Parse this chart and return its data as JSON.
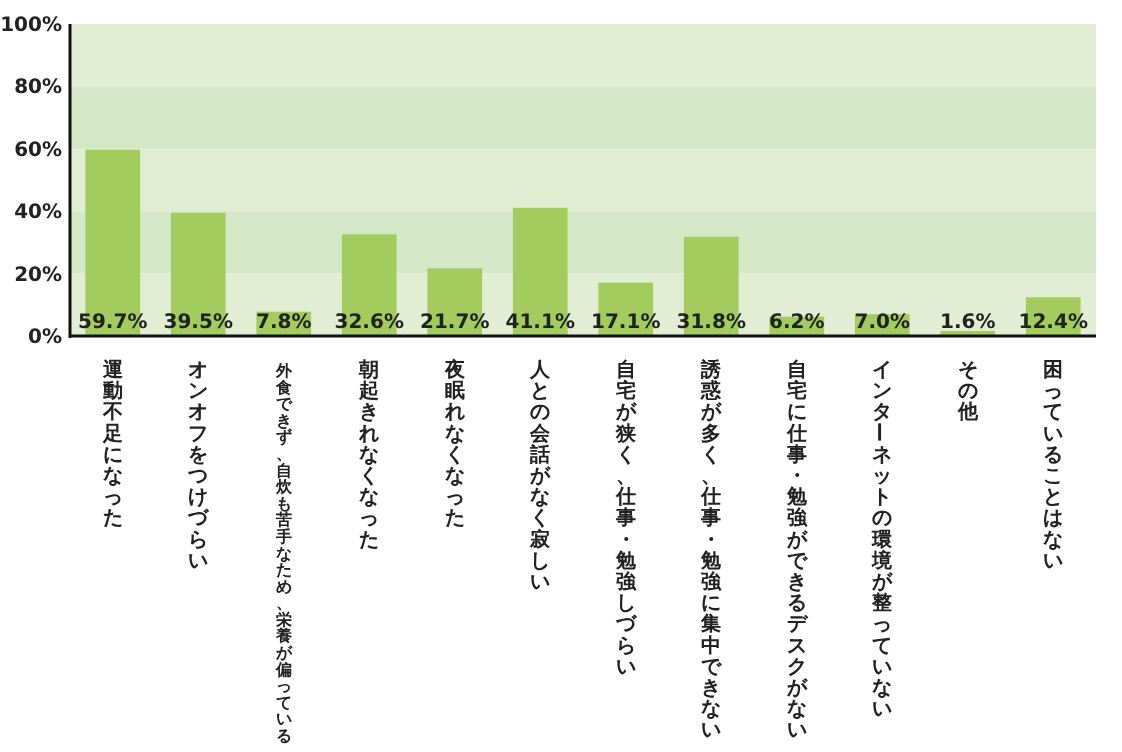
{
  "chart_data": {
    "type": "bar",
    "categories": [
      "運動不足になった",
      "オンオフをつけづらい",
      "外食できず、自炊も苦手なため、栄養が偏っている",
      "朝起きれなくなった",
      "夜眠れなくなった",
      "人との会話がなく寂しい",
      "自宅が狭く、仕事・勉強しづらい",
      "誘惑が多く、仕事・勉強に集中できない",
      "自宅に仕事・勉強ができるデスクがない",
      "インターネットの環境が整っていない",
      "その他",
      "困っていることはない"
    ],
    "values": [
      59.7,
      39.5,
      7.8,
      32.6,
      21.7,
      41.1,
      17.1,
      31.8,
      6.2,
      7.0,
      1.6,
      12.4
    ],
    "value_labels": [
      "59.7%",
      "39.5%",
      "7.8%",
      "32.6%",
      "21.7%",
      "41.1%",
      "17.1%",
      "31.8%",
      "6.2%",
      "7.0%",
      "1.6%",
      "12.4%"
    ],
    "color": "#a3cc5e",
    "ylim": [
      0,
      100
    ],
    "yticks": [
      {
        "value": 0,
        "label": "0%"
      },
      {
        "value": 20,
        "label": "20%"
      },
      {
        "value": 40,
        "label": "40%"
      },
      {
        "value": 60,
        "label": "60%"
      },
      {
        "value": 80,
        "label": "80%"
      },
      {
        "value": 100,
        "label": "100%"
      }
    ],
    "bands": [
      {
        "axis": "y",
        "from": 0,
        "to": 20,
        "color": "#e2eed4"
      },
      {
        "axis": "y",
        "from": 20,
        "to": 40,
        "color": "#d4e7c6"
      },
      {
        "axis": "y",
        "from": 40,
        "to": 60,
        "color": "#e2eed4"
      },
      {
        "axis": "y",
        "from": 60,
        "to": 80,
        "color": "#d4e7c6"
      },
      {
        "axis": "y",
        "from": 80,
        "to": 100,
        "color": "#e2eed4"
      }
    ],
    "grid": false
  }
}
